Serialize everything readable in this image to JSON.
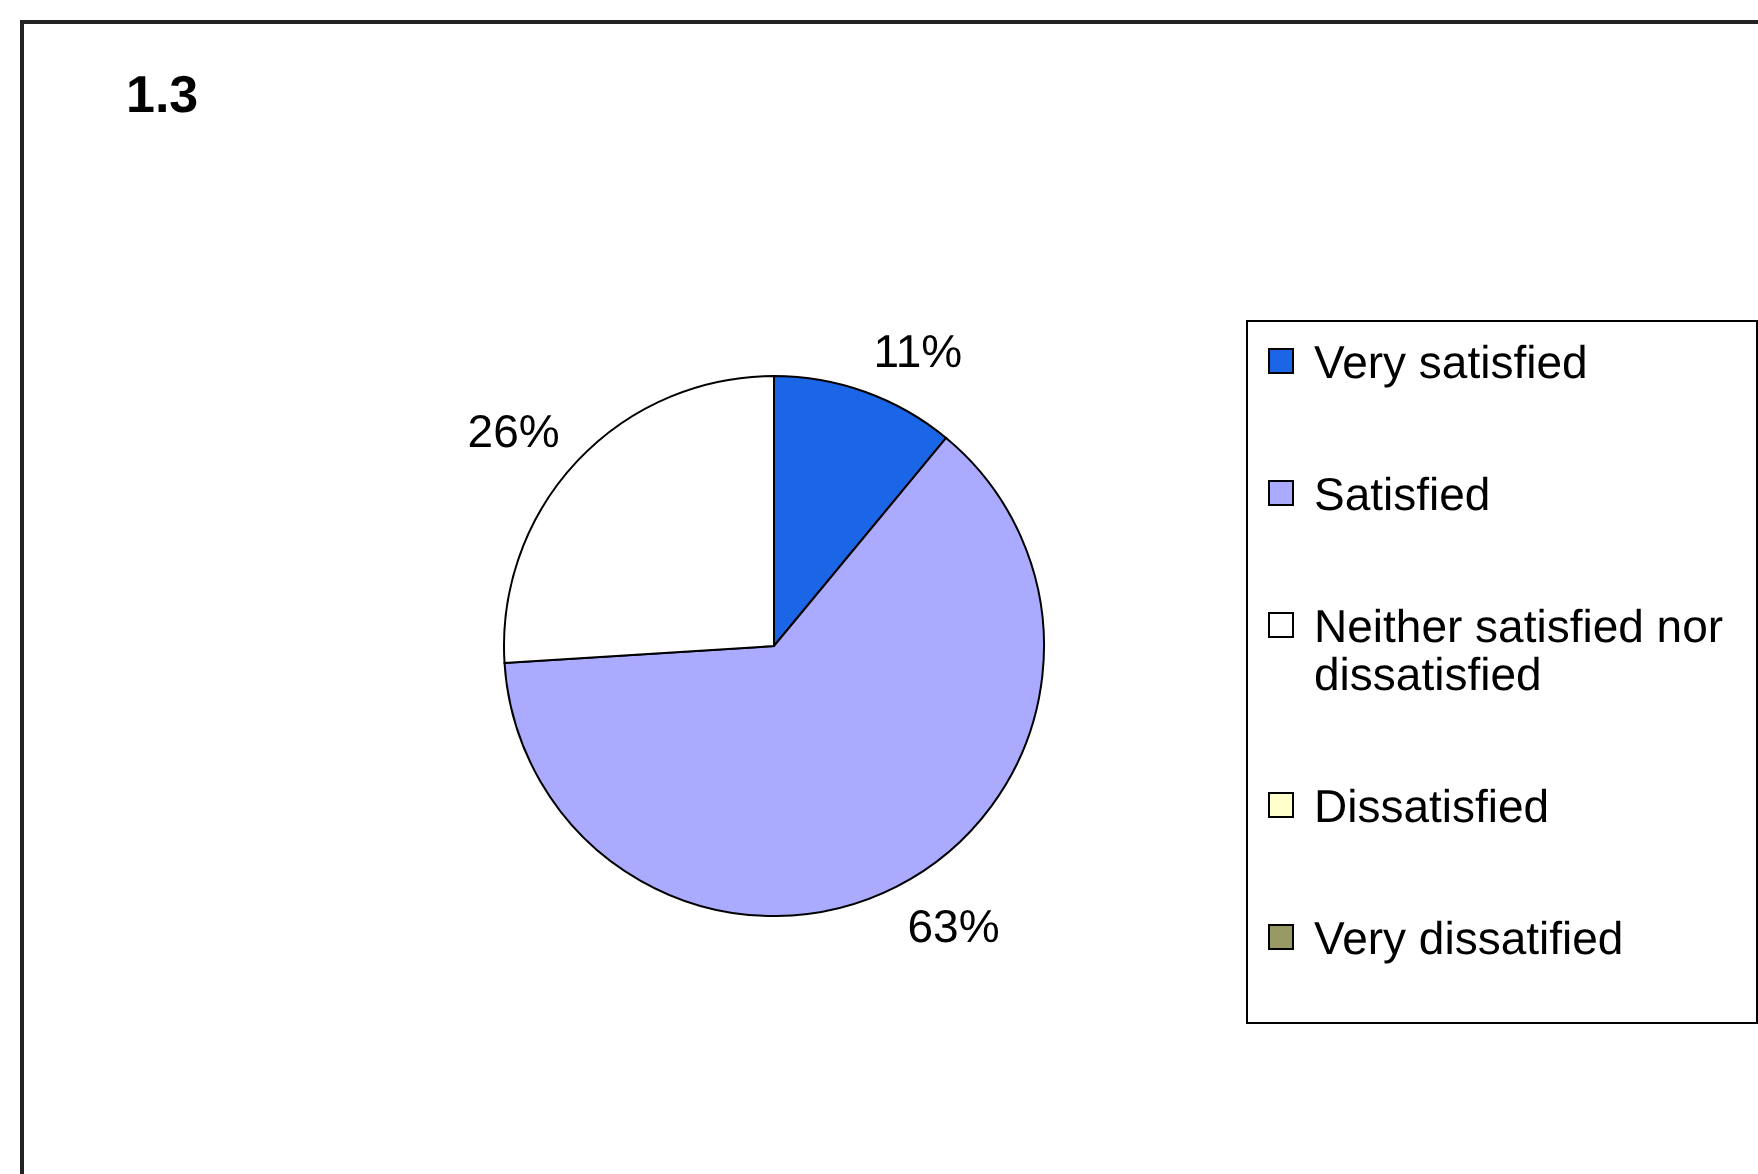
{
  "chart_data": {
    "type": "pie",
    "title": "1.3",
    "categories": [
      "Very satisfied",
      "Satisfied",
      "Neither satisfied nor dissatisfied",
      "Dissatisfied",
      "Very dissatified"
    ],
    "values": [
      11,
      63,
      26,
      0,
      0
    ],
    "colors": [
      "#1a66e6",
      "#aaaaff",
      "#ffffff",
      "#ffffcc",
      "#999966"
    ],
    "value_labels": [
      "11%",
      "63%",
      "26%",
      null,
      null
    ],
    "legend": "right"
  }
}
